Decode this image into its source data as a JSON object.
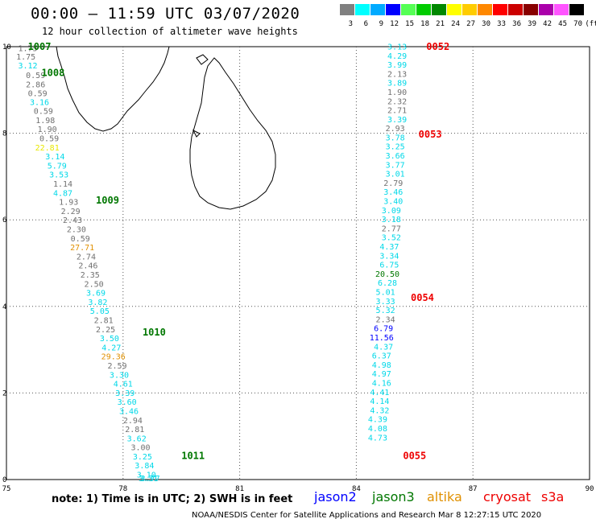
{
  "header": {
    "title": "00:00 – 11:59 UTC 03/07/2020",
    "subtitle": "12 hour collection of altimeter wave heights"
  },
  "color_scale": {
    "unit": "(ft)",
    "bins": [
      {
        "label": "3",
        "color": "#808080"
      },
      {
        "label": "6",
        "color": "#00ffff"
      },
      {
        "label": "9",
        "color": "#00aaff"
      },
      {
        "label": "12",
        "color": "#0000ff"
      },
      {
        "label": "15",
        "color": "#55ff55"
      },
      {
        "label": "18",
        "color": "#00cc00"
      },
      {
        "label": "21",
        "color": "#008800"
      },
      {
        "label": "24",
        "color": "#ffff00"
      },
      {
        "label": "27",
        "color": "#ffcc00"
      },
      {
        "label": "30",
        "color": "#ff8800"
      },
      {
        "label": "33",
        "color": "#ff0000"
      },
      {
        "label": "36",
        "color": "#cc0000"
      },
      {
        "label": "39",
        "color": "#880000"
      },
      {
        "label": "42",
        "color": "#aa00aa"
      },
      {
        "label": "45",
        "color": "#ff55ff"
      },
      {
        "label": "70",
        "color": "#000000"
      }
    ]
  },
  "axes": {
    "x_ticks": [
      "75",
      "78",
      "81",
      "84",
      "87",
      "90"
    ],
    "y_ticks": [
      "0",
      "2",
      "4",
      "6",
      "8",
      "10"
    ],
    "lon_range": [
      75,
      90
    ],
    "lat_range": [
      0,
      10
    ]
  },
  "colors": {
    "gray": "#707070",
    "cyan": "#00d8e8",
    "blue": "#0000ff",
    "green": "#007700",
    "orange": "#e09000",
    "yellow": "#e8e800",
    "red": "#ee0000"
  },
  "chart_data": {
    "type": "scatter",
    "xlabel": "",
    "ylabel": "",
    "xlim": [
      75,
      90
    ],
    "ylim": [
      0,
      10
    ],
    "tracks": [
      {
        "name": "west-track",
        "points": [
          {
            "lon": 75.55,
            "lat": 9.97,
            "v": "1.75",
            "c": "gray"
          },
          {
            "lon": 75.5,
            "lat": 9.78,
            "v": "1.75",
            "c": "gray"
          },
          {
            "lon": 75.55,
            "lat": 9.57,
            "v": "3.12",
            "c": "cyan"
          },
          {
            "lon": 75.75,
            "lat": 9.35,
            "v": "0.59",
            "c": "gray"
          },
          {
            "lon": 75.75,
            "lat": 9.14,
            "v": "2.86",
            "c": "gray"
          },
          {
            "lon": 75.8,
            "lat": 8.93,
            "v": "0.59",
            "c": "gray"
          },
          {
            "lon": 75.85,
            "lat": 8.73,
            "v": "3.16",
            "c": "cyan"
          },
          {
            "lon": 75.95,
            "lat": 8.52,
            "v": "0.59",
            "c": "gray"
          },
          {
            "lon": 76.0,
            "lat": 8.31,
            "v": "1.98",
            "c": "gray"
          },
          {
            "lon": 76.05,
            "lat": 8.1,
            "v": "1.90",
            "c": "gray"
          },
          {
            "lon": 76.1,
            "lat": 7.89,
            "v": "0.59",
            "c": "gray"
          },
          {
            "lon": 76.05,
            "lat": 7.68,
            "v": "22.81",
            "c": "yellow"
          },
          {
            "lon": 76.25,
            "lat": 7.47,
            "v": "3.14",
            "c": "cyan"
          },
          {
            "lon": 76.3,
            "lat": 7.26,
            "v": "5.79",
            "c": "cyan"
          },
          {
            "lon": 76.35,
            "lat": 7.05,
            "v": "3.53",
            "c": "cyan"
          },
          {
            "lon": 76.45,
            "lat": 6.84,
            "v": "1.14",
            "c": "gray"
          },
          {
            "lon": 76.45,
            "lat": 6.63,
            "v": "4.87",
            "c": "cyan"
          },
          {
            "lon": 76.6,
            "lat": 6.42,
            "v": "1.93",
            "c": "gray"
          },
          {
            "lon": 76.65,
            "lat": 6.21,
            "v": "2.29",
            "c": "gray"
          },
          {
            "lon": 76.7,
            "lat": 6.0,
            "v": "2.43",
            "c": "gray"
          },
          {
            "lon": 76.8,
            "lat": 5.79,
            "v": "2.30",
            "c": "gray"
          },
          {
            "lon": 76.9,
            "lat": 5.58,
            "v": "0.59",
            "c": "gray"
          },
          {
            "lon": 76.95,
            "lat": 5.37,
            "v": "27.71",
            "c": "orange"
          },
          {
            "lon": 77.05,
            "lat": 5.16,
            "v": "2.74",
            "c": "gray"
          },
          {
            "lon": 77.1,
            "lat": 4.95,
            "v": "2.46",
            "c": "gray"
          },
          {
            "lon": 77.15,
            "lat": 4.74,
            "v": "2.35",
            "c": "gray"
          },
          {
            "lon": 77.25,
            "lat": 4.53,
            "v": "2.50",
            "c": "gray"
          },
          {
            "lon": 77.3,
            "lat": 4.32,
            "v": "3.69",
            "c": "cyan"
          },
          {
            "lon": 77.35,
            "lat": 4.11,
            "v": "3.82",
            "c": "cyan"
          },
          {
            "lon": 77.4,
            "lat": 3.9,
            "v": "5.05",
            "c": "cyan"
          },
          {
            "lon": 77.5,
            "lat": 3.69,
            "v": "2.81",
            "c": "gray"
          },
          {
            "lon": 77.55,
            "lat": 3.48,
            "v": "2.25",
            "c": "gray"
          },
          {
            "lon": 77.65,
            "lat": 3.27,
            "v": "3.50",
            "c": "cyan"
          },
          {
            "lon": 77.7,
            "lat": 3.06,
            "v": "4.27",
            "c": "cyan"
          },
          {
            "lon": 77.75,
            "lat": 2.85,
            "v": "29.36",
            "c": "orange"
          },
          {
            "lon": 77.85,
            "lat": 2.64,
            "v": "2.59",
            "c": "gray"
          },
          {
            "lon": 77.9,
            "lat": 2.43,
            "v": "3.30",
            "c": "cyan"
          },
          {
            "lon": 78.0,
            "lat": 2.22,
            "v": "4.61",
            "c": "cyan"
          },
          {
            "lon": 78.05,
            "lat": 2.01,
            "v": "3.39",
            "c": "cyan"
          },
          {
            "lon": 78.1,
            "lat": 1.8,
            "v": "3.60",
            "c": "cyan"
          },
          {
            "lon": 78.15,
            "lat": 1.59,
            "v": "3.46",
            "c": "cyan"
          },
          {
            "lon": 78.25,
            "lat": 1.38,
            "v": "2.94",
            "c": "gray"
          },
          {
            "lon": 78.3,
            "lat": 1.17,
            "v": "2.81",
            "c": "gray"
          },
          {
            "lon": 78.35,
            "lat": 0.96,
            "v": "3.62",
            "c": "cyan"
          },
          {
            "lon": 78.45,
            "lat": 0.75,
            "v": "3.00",
            "c": "gray"
          },
          {
            "lon": 78.5,
            "lat": 0.54,
            "v": "3.25",
            "c": "cyan"
          },
          {
            "lon": 78.55,
            "lat": 0.33,
            "v": "3.84",
            "c": "cyan"
          },
          {
            "lon": 78.6,
            "lat": 0.12,
            "v": "3.10",
            "c": "cyan"
          },
          {
            "lon": 78.65,
            "lat": -0.09,
            "v": "3.31",
            "c": "cyan"
          },
          {
            "lon": 78.7,
            "lat": -0.3,
            "v": "3.77",
            "c": "cyan"
          }
        ]
      },
      {
        "name": "east-track",
        "points": [
          {
            "lon": 85.05,
            "lat": 10.01,
            "v": "3.13",
            "c": "cyan"
          },
          {
            "lon": 85.05,
            "lat": 9.8,
            "v": "4.29",
            "c": "cyan"
          },
          {
            "lon": 85.05,
            "lat": 9.59,
            "v": "3.99",
            "c": "cyan"
          },
          {
            "lon": 85.05,
            "lat": 9.38,
            "v": "2.13",
            "c": "gray"
          },
          {
            "lon": 85.05,
            "lat": 9.17,
            "v": "3.89",
            "c": "cyan"
          },
          {
            "lon": 85.05,
            "lat": 8.96,
            "v": "1.90",
            "c": "gray"
          },
          {
            "lon": 85.05,
            "lat": 8.75,
            "v": "2.32",
            "c": "gray"
          },
          {
            "lon": 85.05,
            "lat": 8.54,
            "v": "2.71",
            "c": "gray"
          },
          {
            "lon": 85.05,
            "lat": 8.33,
            "v": "3.39",
            "c": "cyan"
          },
          {
            "lon": 85.0,
            "lat": 8.12,
            "v": "2.93",
            "c": "gray"
          },
          {
            "lon": 85.0,
            "lat": 7.91,
            "v": "3.78",
            "c": "cyan"
          },
          {
            "lon": 85.0,
            "lat": 7.7,
            "v": "3.25",
            "c": "cyan"
          },
          {
            "lon": 85.0,
            "lat": 7.49,
            "v": "3.66",
            "c": "cyan"
          },
          {
            "lon": 85.0,
            "lat": 7.28,
            "v": "3.77",
            "c": "cyan"
          },
          {
            "lon": 85.0,
            "lat": 7.07,
            "v": "3.01",
            "c": "cyan"
          },
          {
            "lon": 84.95,
            "lat": 6.86,
            "v": "2.79",
            "c": "gray"
          },
          {
            "lon": 84.95,
            "lat": 6.65,
            "v": "3.46",
            "c": "cyan"
          },
          {
            "lon": 84.95,
            "lat": 6.44,
            "v": "3.40",
            "c": "cyan"
          },
          {
            "lon": 84.9,
            "lat": 6.23,
            "v": "3.09",
            "c": "cyan"
          },
          {
            "lon": 84.9,
            "lat": 6.02,
            "v": "3.18",
            "c": "cyan"
          },
          {
            "lon": 84.9,
            "lat": 5.81,
            "v": "2.77",
            "c": "gray"
          },
          {
            "lon": 84.9,
            "lat": 5.6,
            "v": "3.52",
            "c": "cyan"
          },
          {
            "lon": 84.85,
            "lat": 5.39,
            "v": "4.37",
            "c": "cyan"
          },
          {
            "lon": 84.85,
            "lat": 5.18,
            "v": "3.34",
            "c": "cyan"
          },
          {
            "lon": 84.85,
            "lat": 4.97,
            "v": "6.75",
            "c": "cyan"
          },
          {
            "lon": 84.8,
            "lat": 4.76,
            "v": "20.50",
            "c": "green"
          },
          {
            "lon": 84.8,
            "lat": 4.55,
            "v": "6.28",
            "c": "cyan"
          },
          {
            "lon": 84.75,
            "lat": 4.34,
            "v": "5.01",
            "c": "cyan"
          },
          {
            "lon": 84.75,
            "lat": 4.13,
            "v": "3.33",
            "c": "cyan"
          },
          {
            "lon": 84.75,
            "lat": 3.92,
            "v": "5.32",
            "c": "cyan"
          },
          {
            "lon": 84.75,
            "lat": 3.71,
            "v": "2.34",
            "c": "gray"
          },
          {
            "lon": 84.7,
            "lat": 3.5,
            "v": "6.79",
            "c": "blue"
          },
          {
            "lon": 84.65,
            "lat": 3.29,
            "v": "11.56",
            "c": "blue"
          },
          {
            "lon": 84.7,
            "lat": 3.08,
            "v": "4.37",
            "c": "cyan"
          },
          {
            "lon": 84.65,
            "lat": 2.87,
            "v": "6.37",
            "c": "cyan"
          },
          {
            "lon": 84.65,
            "lat": 2.66,
            "v": "4.98",
            "c": "cyan"
          },
          {
            "lon": 84.65,
            "lat": 2.45,
            "v": "4.97",
            "c": "cyan"
          },
          {
            "lon": 84.65,
            "lat": 2.24,
            "v": "4.16",
            "c": "cyan"
          },
          {
            "lon": 84.6,
            "lat": 2.03,
            "v": "4.41",
            "c": "cyan"
          },
          {
            "lon": 84.6,
            "lat": 1.82,
            "v": "4.14",
            "c": "cyan"
          },
          {
            "lon": 84.6,
            "lat": 1.61,
            "v": "4.32",
            "c": "cyan"
          },
          {
            "lon": 84.55,
            "lat": 1.4,
            "v": "4.39",
            "c": "cyan"
          },
          {
            "lon": 84.55,
            "lat": 1.19,
            "v": "4.08",
            "c": "cyan"
          },
          {
            "lon": 84.55,
            "lat": 0.98,
            "v": "4.73",
            "c": "cyan"
          }
        ]
      }
    ],
    "time_marks": [
      {
        "label": "1007",
        "lon": 75.85,
        "lat": 10.0,
        "c": "green"
      },
      {
        "label": "1008",
        "lon": 76.2,
        "lat": 9.4,
        "c": "green"
      },
      {
        "label": "1009",
        "lon": 77.6,
        "lat": 6.45,
        "c": "green"
      },
      {
        "lon": 78.8,
        "lat": 3.4,
        "label": "1010",
        "c": "green"
      },
      {
        "label": "1011",
        "lon": 79.8,
        "lat": 0.55,
        "c": "green"
      },
      {
        "label": "0052",
        "lon": 86.1,
        "lat": 10.0,
        "c": "red"
      },
      {
        "label": "0053",
        "lon": 85.9,
        "lat": 7.97,
        "c": "red"
      },
      {
        "label": "0054",
        "lon": 85.7,
        "lat": 4.2,
        "c": "red"
      },
      {
        "label": "0055",
        "lon": 85.5,
        "lat": 0.55,
        "c": "red"
      }
    ]
  },
  "footer": {
    "note": "note: 1) Time is in UTC; 2) SWH is in feet",
    "legend": [
      {
        "label": "jason2",
        "c": "blue"
      },
      {
        "label": "jason3",
        "c": "green"
      },
      {
        "label": "altika",
        "c": "orange"
      },
      {
        "label": "cryosat",
        "c": "red"
      },
      {
        "label": "s3a",
        "c": "red"
      }
    ],
    "credit": "NOAA/NESDIS Center for Satellite Applications and Research    Mar  8 12:27:15 UTC 2020"
  }
}
